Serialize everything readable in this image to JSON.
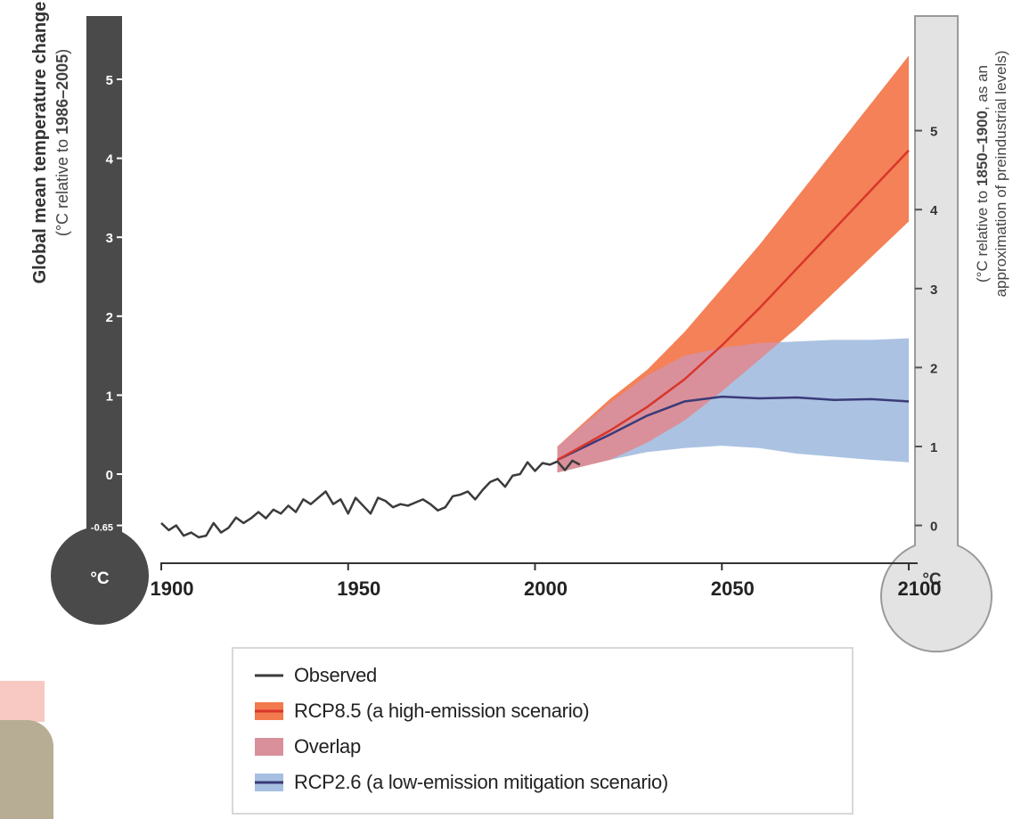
{
  "chart_data": {
    "type": "line",
    "xlim": [
      1900,
      2100
    ],
    "ylim": [
      -0.65,
      5.65
    ],
    "x_ticks": [
      "1900",
      "1950",
      "2000",
      "2050",
      "2100"
    ],
    "left_axis": {
      "title": "Global mean temperature change",
      "subtitle_plain": "(°C relative to ",
      "subtitle_bold": "1986–2005",
      "subtitle_end": ")",
      "ticks": [
        "5",
        "4",
        "3",
        "2",
        "1",
        "0",
        "-0.65"
      ],
      "bulb_label": "°C",
      "color": "#4a4a4a"
    },
    "right_axis": {
      "line1_plain": "(°C relative to ",
      "line1_bold": "1850–1900",
      "line1_end": ", as an",
      "line2": "approximation of preindustrial levels)",
      "ticks": [
        "5",
        "4",
        "3",
        "2",
        "1",
        "0"
      ],
      "offset": 0.65,
      "bulb_label": "°C",
      "color": "#e3e3e3"
    },
    "series": [
      {
        "name": "Observed",
        "color": "#3b3b3b",
        "x": [
          1900,
          1902,
          1904,
          1906,
          1908,
          1910,
          1912,
          1914,
          1916,
          1918,
          1920,
          1922,
          1924,
          1926,
          1928,
          1930,
          1932,
          1934,
          1936,
          1938,
          1940,
          1942,
          1944,
          1946,
          1948,
          1950,
          1952,
          1954,
          1956,
          1958,
          1960,
          1962,
          1964,
          1966,
          1968,
          1970,
          1972,
          1974,
          1976,
          1978,
          1980,
          1982,
          1984,
          1986,
          1988,
          1990,
          1992,
          1994,
          1996,
          1998,
          2000,
          2002,
          2004,
          2006,
          2008,
          2010,
          2012
        ],
        "y": [
          -0.62,
          -0.71,
          -0.65,
          -0.78,
          -0.74,
          -0.8,
          -0.78,
          -0.62,
          -0.74,
          -0.68,
          -0.55,
          -0.62,
          -0.56,
          -0.48,
          -0.56,
          -0.45,
          -0.5,
          -0.4,
          -0.48,
          -0.32,
          -0.38,
          -0.3,
          -0.22,
          -0.38,
          -0.32,
          -0.5,
          -0.3,
          -0.4,
          -0.5,
          -0.3,
          -0.34,
          -0.42,
          -0.38,
          -0.4,
          -0.36,
          -0.32,
          -0.38,
          -0.46,
          -0.42,
          -0.28,
          -0.26,
          -0.22,
          -0.32,
          -0.2,
          -0.1,
          -0.06,
          -0.16,
          -0.02,
          0.0,
          0.15,
          0.04,
          0.14,
          0.12,
          0.16,
          0.05,
          0.17,
          0.12
        ]
      },
      {
        "name": "RCP8.5 (a high-emission scenario)",
        "color": "#f37a4e",
        "line_color": "#d9362b",
        "x": [
          2006,
          2020,
          2030,
          2040,
          2050,
          2060,
          2070,
          2080,
          2090,
          2100
        ],
        "mean": [
          0.18,
          0.55,
          0.85,
          1.2,
          1.63,
          2.1,
          2.6,
          3.1,
          3.6,
          4.1
        ],
        "low": [
          0.02,
          0.18,
          0.4,
          0.68,
          1.05,
          1.45,
          1.85,
          2.3,
          2.75,
          3.2
        ],
        "high": [
          0.35,
          0.95,
          1.32,
          1.8,
          2.35,
          2.9,
          3.5,
          4.1,
          4.7,
          5.3
        ]
      },
      {
        "name": "Overlap",
        "color": "#d9909b"
      },
      {
        "name": "RCP2.6 (a low-emission mitigation scenario)",
        "color": "#a7bfe0",
        "line_color": "#3b3a78",
        "x": [
          2006,
          2020,
          2030,
          2040,
          2050,
          2060,
          2070,
          2080,
          2090,
          2100
        ],
        "mean": [
          0.18,
          0.5,
          0.74,
          0.92,
          0.98,
          0.96,
          0.97,
          0.94,
          0.95,
          0.92
        ],
        "low": [
          0.02,
          0.18,
          0.28,
          0.33,
          0.36,
          0.33,
          0.26,
          0.22,
          0.18,
          0.15
        ],
        "high": [
          0.35,
          0.9,
          1.25,
          1.5,
          1.6,
          1.66,
          1.68,
          1.7,
          1.7,
          1.72
        ]
      }
    ]
  },
  "legend": {
    "items": [
      {
        "label": "Observed",
        "kind": "line",
        "color": "#3b3b3b"
      },
      {
        "label": "RCP8.5 (a high-emission scenario)",
        "kind": "band",
        "color": "#f37a4e",
        "line_color": "#d9362b"
      },
      {
        "label": "Overlap",
        "kind": "band",
        "color": "#d9909b",
        "line_color": "#d9909b"
      },
      {
        "label": "RCP2.6 (a low-emission mitigation scenario)",
        "kind": "band",
        "color": "#a7bfe0",
        "line_color": "#3b3a78"
      }
    ]
  }
}
